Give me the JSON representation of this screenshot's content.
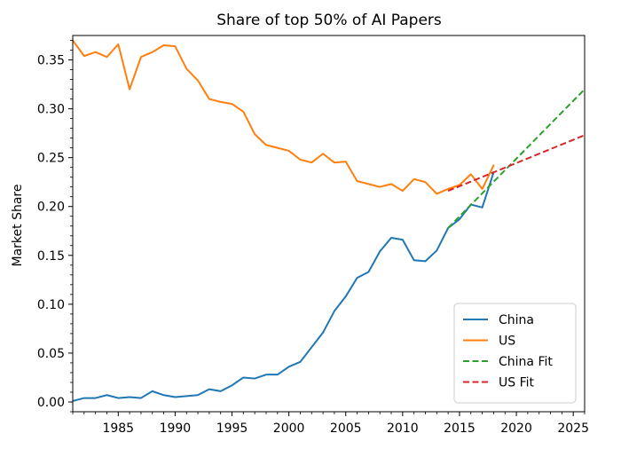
{
  "chart_data": {
    "type": "line",
    "title": "Share of top 50% of AI Papers",
    "xlabel": "",
    "ylabel": "Market Share",
    "xlim": [
      1981,
      2026
    ],
    "ylim": [
      -0.01,
      0.375
    ],
    "xticks": [
      1985,
      1990,
      1995,
      2000,
      2005,
      2010,
      2015,
      2020,
      2025
    ],
    "yticks": [
      0.0,
      0.05,
      0.1,
      0.15,
      0.2,
      0.25,
      0.3,
      0.35
    ],
    "ytick_labels": [
      "0.00",
      "0.05",
      "0.10",
      "0.15",
      "0.20",
      "0.25",
      "0.30",
      "0.35"
    ],
    "grid": false,
    "legend_position": "lower-right",
    "series": [
      {
        "name": "China",
        "color": "#1f77b4",
        "style": "solid",
        "x": [
          1981,
          1982,
          1983,
          1984,
          1985,
          1986,
          1987,
          1988,
          1989,
          1990,
          1991,
          1992,
          1993,
          1994,
          1995,
          1996,
          1997,
          1998,
          1999,
          2000,
          2001,
          2002,
          2003,
          2004,
          2005,
          2006,
          2007,
          2008,
          2009,
          2010,
          2011,
          2012,
          2013,
          2014,
          2015,
          2016,
          2017,
          2018
        ],
        "y": [
          0.001,
          0.004,
          0.004,
          0.007,
          0.004,
          0.005,
          0.004,
          0.011,
          0.007,
          0.005,
          0.006,
          0.007,
          0.013,
          0.011,
          0.017,
          0.025,
          0.024,
          0.028,
          0.028,
          0.036,
          0.041,
          0.056,
          0.071,
          0.093,
          0.108,
          0.127,
          0.133,
          0.154,
          0.168,
          0.166,
          0.145,
          0.144,
          0.155,
          0.178,
          0.187,
          0.202,
          0.199,
          0.235
        ]
      },
      {
        "name": "US",
        "color": "#ff7f0e",
        "style": "solid",
        "x": [
          1981,
          1982,
          1983,
          1984,
          1985,
          1986,
          1987,
          1988,
          1989,
          1990,
          1991,
          1992,
          1993,
          1994,
          1995,
          1996,
          1997,
          1998,
          1999,
          2000,
          2001,
          2002,
          2003,
          2004,
          2005,
          2006,
          2007,
          2008,
          2009,
          2010,
          2011,
          2012,
          2013,
          2014,
          2015,
          2016,
          2017,
          2018
        ],
        "y": [
          0.37,
          0.354,
          0.358,
          0.353,
          0.366,
          0.32,
          0.353,
          0.358,
          0.365,
          0.364,
          0.341,
          0.329,
          0.31,
          0.307,
          0.305,
          0.297,
          0.274,
          0.263,
          0.26,
          0.257,
          0.248,
          0.245,
          0.254,
          0.245,
          0.246,
          0.226,
          0.223,
          0.22,
          0.223,
          0.216,
          0.228,
          0.225,
          0.213,
          0.218,
          0.222,
          0.233,
          0.218,
          0.242
        ]
      },
      {
        "name": "China Fit",
        "color": "#2ca02c",
        "style": "dashed",
        "x": [
          2014,
          2026
        ],
        "y": [
          0.178,
          0.32
        ]
      },
      {
        "name": "US Fit",
        "color": "#d62728",
        "style": "dashed",
        "x": [
          2014,
          2026
        ],
        "y": [
          0.216,
          0.273
        ]
      }
    ]
  }
}
